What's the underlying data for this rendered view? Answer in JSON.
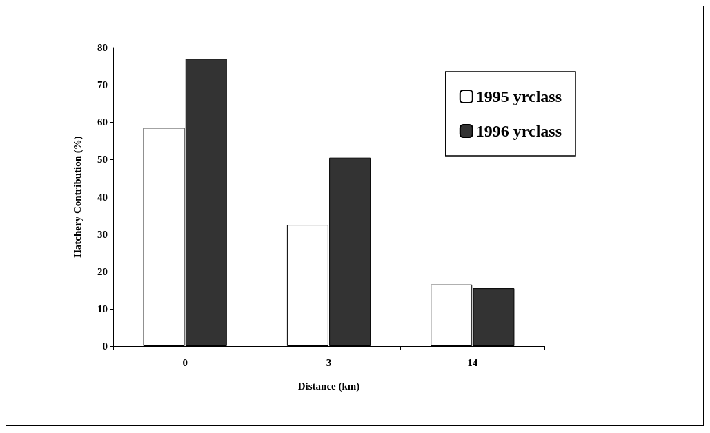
{
  "chart_data": {
    "type": "bar",
    "xlabel": "Distance (km)",
    "ylabel": "Hatchery Contribution (%)",
    "categories": [
      "0",
      "3",
      "14"
    ],
    "series": [
      {
        "name": "1995 yrclass",
        "color": "#ffffff",
        "values": [
          58.5,
          32.5,
          16.5
        ]
      },
      {
        "name": "1996 yrclass",
        "color": "#333333",
        "values": [
          77,
          50.5,
          15.5
        ]
      }
    ],
    "ylim": [
      0,
      80
    ],
    "yticks": [
      0,
      10,
      20,
      30,
      40,
      50,
      60,
      70,
      80
    ],
    "grid": false,
    "legend": "top right"
  }
}
